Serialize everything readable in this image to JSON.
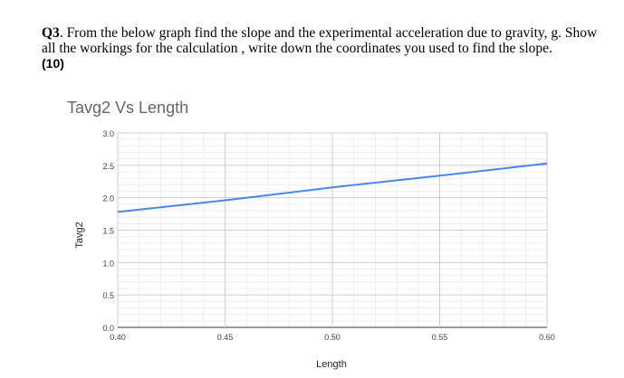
{
  "question": {
    "number": "Q3",
    "text": ". From the below graph find the slope and the experimental acceleration due to gravity, g. Show all the workings for the calculation , write down the coordinates you used to find the slope.",
    "marks": "(10)"
  },
  "chart_data": {
    "type": "line",
    "title": "Tavg2 Vs Length",
    "xlabel": "Length",
    "ylabel": "Tavg2",
    "xlim": [
      0.4,
      0.6
    ],
    "ylim": [
      0.0,
      3.0
    ],
    "x_ticks": [
      "0.40",
      "0.45",
      "0.50",
      "0.55",
      "0.60"
    ],
    "y_ticks": [
      "0.0",
      "0.5",
      "1.0",
      "1.5",
      "2.0",
      "2.5",
      "3.0"
    ],
    "grid": true,
    "series": [
      {
        "color": "#4a86e8",
        "points": [
          {
            "x": 0.4,
            "y": 1.78
          },
          {
            "x": 0.45,
            "y": 1.96
          },
          {
            "x": 0.5,
            "y": 2.16
          },
          {
            "x": 0.55,
            "y": 2.34
          },
          {
            "x": 0.6,
            "y": 2.53
          }
        ]
      }
    ]
  }
}
